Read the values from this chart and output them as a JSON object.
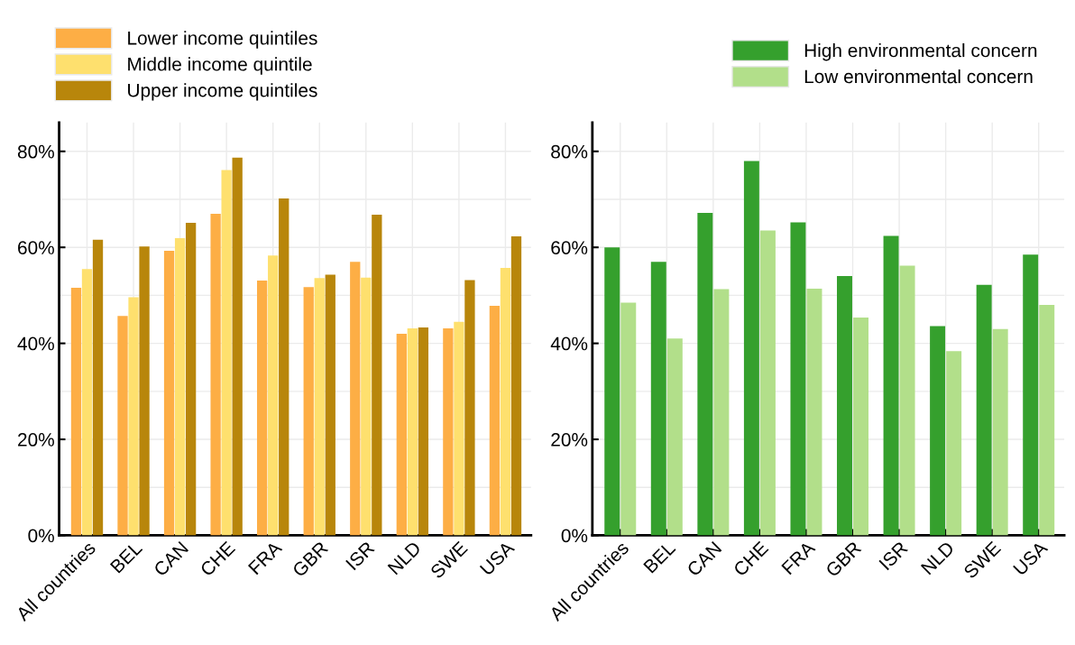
{
  "chart_data": [
    {
      "type": "bar",
      "categories": [
        "All countries",
        "BEL",
        "CAN",
        "CHE",
        "FRA",
        "GBR",
        "ISR",
        "NLD",
        "SWE",
        "USA"
      ],
      "series": [
        {
          "name": "Lower income quintiles",
          "color": "#fdae45",
          "values": [
            51.6,
            45.7,
            59.3,
            67.0,
            53.1,
            51.7,
            57.0,
            42.0,
            43.1,
            47.8
          ]
        },
        {
          "name": "Middle income quintile",
          "color": "#fee06e",
          "values": [
            55.5,
            49.6,
            61.9,
            76.1,
            58.3,
            53.6,
            53.7,
            43.1,
            44.5,
            55.7
          ]
        },
        {
          "name": "Upper income quintiles",
          "color": "#b8860b",
          "values": [
            61.6,
            60.2,
            65.1,
            78.7,
            70.2,
            54.3,
            66.8,
            43.3,
            53.2,
            62.3
          ]
        }
      ],
      "ylim": [
        0,
        86
      ],
      "yticks": [
        {
          "value": 0,
          "label": "0%"
        },
        {
          "value": 10,
          "label": null
        },
        {
          "value": 20,
          "label": "20%"
        },
        {
          "value": 30,
          "label": null
        },
        {
          "value": 40,
          "label": "40%"
        },
        {
          "value": 50,
          "label": null
        },
        {
          "value": 60,
          "label": "60%"
        },
        {
          "value": 70,
          "label": null
        },
        {
          "value": 80,
          "label": "80%"
        }
      ],
      "grid": true,
      "legend": "top"
    },
    {
      "type": "bar",
      "categories": [
        "All countries",
        "BEL",
        "CAN",
        "CHE",
        "FRA",
        "GBR",
        "ISR",
        "NLD",
        "SWE",
        "USA"
      ],
      "series": [
        {
          "name": "High environmental concern",
          "color": "#35a02d",
          "values": [
            60.0,
            57.0,
            67.2,
            78.0,
            65.2,
            54.0,
            62.4,
            43.6,
            52.2,
            58.5
          ]
        },
        {
          "name": "Low environmental concern",
          "color": "#b2df8a",
          "values": [
            48.5,
            41.0,
            51.3,
            63.5,
            51.4,
            45.4,
            56.2,
            38.4,
            43.0,
            48.0
          ]
        }
      ],
      "ylim": [
        0,
        86
      ],
      "yticks": [
        {
          "value": 0,
          "label": "0%"
        },
        {
          "value": 10,
          "label": null
        },
        {
          "value": 20,
          "label": "20%"
        },
        {
          "value": 30,
          "label": null
        },
        {
          "value": 40,
          "label": "40%"
        },
        {
          "value": 50,
          "label": null
        },
        {
          "value": 60,
          "label": "60%"
        },
        {
          "value": 70,
          "label": null
        },
        {
          "value": 80,
          "label": "80%"
        }
      ],
      "grid": true,
      "legend": "top right"
    }
  ]
}
